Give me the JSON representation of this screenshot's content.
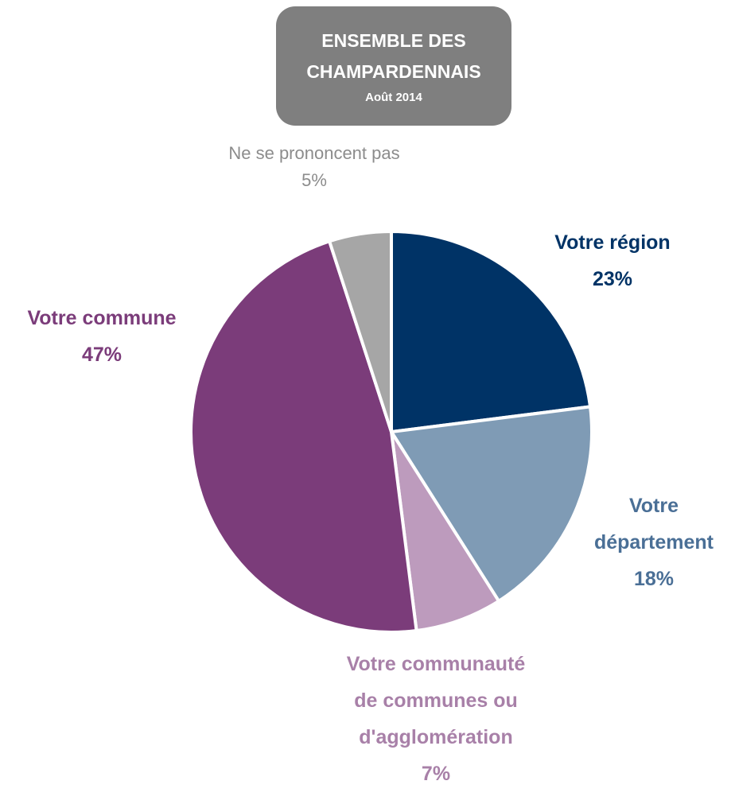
{
  "chart_data": {
    "type": "pie",
    "title": "ENSEMBLE DES CHAMPARDENNAIS",
    "subtitle": "Août 2014",
    "categories": [
      "Votre région",
      "Votre département",
      "Votre communauté de communes ou d'agglomération",
      "Votre commune",
      "Ne se prononcent pas"
    ],
    "values": [
      23,
      18,
      7,
      47,
      5
    ],
    "value_labels": [
      "23%",
      "18%",
      "7%",
      "47%",
      "5%"
    ],
    "colors": [
      "#003366",
      "#7f9bb5",
      "#bd9bbd",
      "#7b3c7a",
      "#a6a6a6"
    ],
    "label_colors": [
      "#003366",
      "#4a6f96",
      "#a880a8",
      "#7b3c7a",
      "#8c8c8c"
    ]
  }
}
